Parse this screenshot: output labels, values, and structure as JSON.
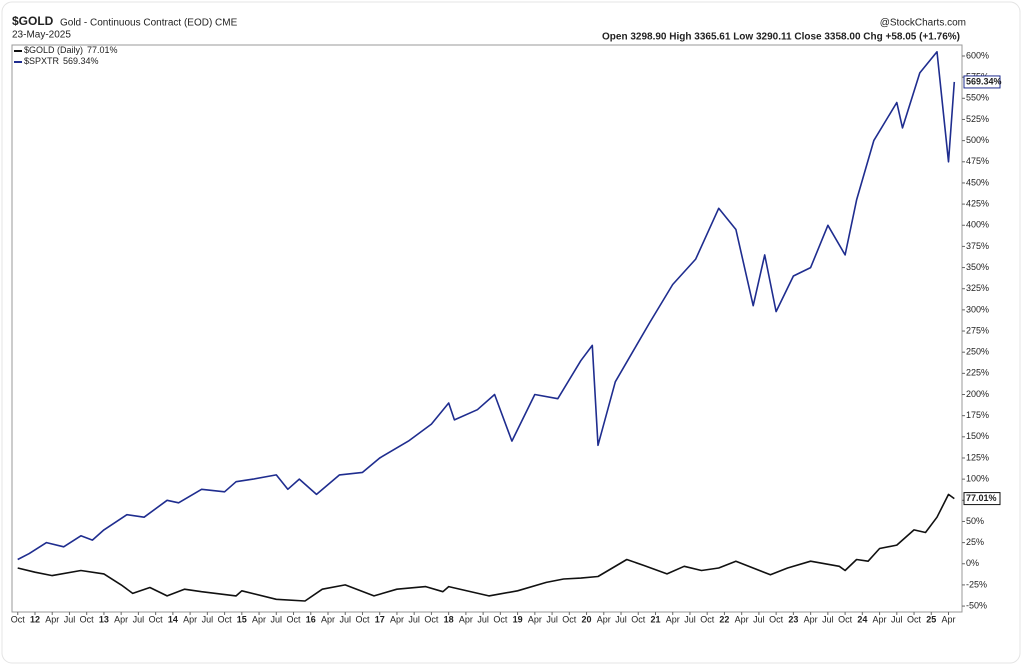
{
  "chart_data": {
    "type": "line",
    "title": "$GOLD",
    "subtitle": "Gold - Continuous Contract (EOD) CME",
    "date": "23-May-2025",
    "source": "@StockCharts.com",
    "ohlc": "Open 3298.90 High 3365.61 Low 3290.11 Close 3358.00 Chg +58.05 (+1.76%)",
    "xlim": [
      "2011-09",
      "2025-06"
    ],
    "ylim": [
      -57,
      613
    ],
    "xticks": [
      {
        "value": "2011-10",
        "label": "Oct"
      },
      {
        "value": "2012-01",
        "label": "12"
      },
      {
        "value": "2012-04",
        "label": "Apr"
      },
      {
        "value": "2012-07",
        "label": "Jul"
      },
      {
        "value": "2012-10",
        "label": "Oct"
      },
      {
        "value": "2013-01",
        "label": "13"
      },
      {
        "value": "2013-04",
        "label": "Apr"
      },
      {
        "value": "2013-07",
        "label": "Jul"
      },
      {
        "value": "2013-10",
        "label": "Oct"
      },
      {
        "value": "2014-01",
        "label": "14"
      },
      {
        "value": "2014-04",
        "label": "Apr"
      },
      {
        "value": "2014-07",
        "label": "Jul"
      },
      {
        "value": "2014-10",
        "label": "Oct"
      },
      {
        "value": "2015-01",
        "label": "15"
      },
      {
        "value": "2015-04",
        "label": "Apr"
      },
      {
        "value": "2015-07",
        "label": "Jul"
      },
      {
        "value": "2015-10",
        "label": "Oct"
      },
      {
        "value": "2016-01",
        "label": "16"
      },
      {
        "value": "2016-04",
        "label": "Apr"
      },
      {
        "value": "2016-07",
        "label": "Jul"
      },
      {
        "value": "2016-10",
        "label": "Oct"
      },
      {
        "value": "2017-01",
        "label": "17"
      },
      {
        "value": "2017-04",
        "label": "Apr"
      },
      {
        "value": "2017-07",
        "label": "Jul"
      },
      {
        "value": "2017-10",
        "label": "Oct"
      },
      {
        "value": "2018-01",
        "label": "18"
      },
      {
        "value": "2018-04",
        "label": "Apr"
      },
      {
        "value": "2018-07",
        "label": "Jul"
      },
      {
        "value": "2018-10",
        "label": "Oct"
      },
      {
        "value": "2019-01",
        "label": "19"
      },
      {
        "value": "2019-04",
        "label": "Apr"
      },
      {
        "value": "2019-07",
        "label": "Jul"
      },
      {
        "value": "2019-10",
        "label": "Oct"
      },
      {
        "value": "2020-01",
        "label": "20"
      },
      {
        "value": "2020-04",
        "label": "Apr"
      },
      {
        "value": "2020-07",
        "label": "Jul"
      },
      {
        "value": "2020-10",
        "label": "Oct"
      },
      {
        "value": "2021-01",
        "label": "21"
      },
      {
        "value": "2021-04",
        "label": "Apr"
      },
      {
        "value": "2021-07",
        "label": "Jul"
      },
      {
        "value": "2021-10",
        "label": "Oct"
      },
      {
        "value": "2022-01",
        "label": "22"
      },
      {
        "value": "2022-04",
        "label": "Apr"
      },
      {
        "value": "2022-07",
        "label": "Jul"
      },
      {
        "value": "2022-10",
        "label": "Oct"
      },
      {
        "value": "2023-01",
        "label": "23"
      },
      {
        "value": "2023-04",
        "label": "Apr"
      },
      {
        "value": "2023-07",
        "label": "Jul"
      },
      {
        "value": "2023-10",
        "label": "Oct"
      },
      {
        "value": "2024-01",
        "label": "24"
      },
      {
        "value": "2024-04",
        "label": "Apr"
      },
      {
        "value": "2024-07",
        "label": "Jul"
      },
      {
        "value": "2024-10",
        "label": "Oct"
      },
      {
        "value": "2025-01",
        "label": "25"
      },
      {
        "value": "2025-04",
        "label": "Apr"
      }
    ],
    "yticks": [
      {
        "value": -50,
        "label": "-50%"
      },
      {
        "value": -25,
        "label": "-25%"
      },
      {
        "value": 0,
        "label": "0%"
      },
      {
        "value": 25,
        "label": "25%"
      },
      {
        "value": 50,
        "label": "50%"
      },
      {
        "value": 75,
        "label": "75%"
      },
      {
        "value": 100,
        "label": "100%"
      },
      {
        "value": 125,
        "label": "125%"
      },
      {
        "value": 150,
        "label": "150%"
      },
      {
        "value": 175,
        "label": "175%"
      },
      {
        "value": 200,
        "label": "200%"
      },
      {
        "value": 225,
        "label": "225%"
      },
      {
        "value": 250,
        "label": "250%"
      },
      {
        "value": 275,
        "label": "275%"
      },
      {
        "value": 300,
        "label": "300%"
      },
      {
        "value": 325,
        "label": "325%"
      },
      {
        "value": 350,
        "label": "350%"
      },
      {
        "value": 375,
        "label": "375%"
      },
      {
        "value": 400,
        "label": "400%"
      },
      {
        "value": 425,
        "label": "425%"
      },
      {
        "value": 450,
        "label": "450%"
      },
      {
        "value": 475,
        "label": "475%"
      },
      {
        "value": 500,
        "label": "500%"
      },
      {
        "value": 525,
        "label": "525%"
      },
      {
        "value": 550,
        "label": "550%"
      },
      {
        "value": 575,
        "label": "575%"
      },
      {
        "value": 600,
        "label": "600%"
      }
    ],
    "series": [
      {
        "name": "$GOLD (Daily)",
        "last_label": "77.01%",
        "color": "#111111",
        "x": [
          "2011-10",
          "2012-01",
          "2012-04",
          "2012-09",
          "2013-01",
          "2013-04",
          "2013-06",
          "2013-09",
          "2013-12",
          "2014-03",
          "2014-06",
          "2014-12",
          "2015-01",
          "2015-07",
          "2015-12",
          "2016-03",
          "2016-07",
          "2016-12",
          "2017-04",
          "2017-09",
          "2017-12",
          "2018-01",
          "2018-08",
          "2019-01",
          "2019-06",
          "2019-09",
          "2019-12",
          "2020-03",
          "2020-08",
          "2020-11",
          "2021-03",
          "2021-06",
          "2021-09",
          "2021-12",
          "2022-03",
          "2022-09",
          "2022-12",
          "2023-04",
          "2023-09",
          "2023-10",
          "2023-12",
          "2024-02",
          "2024-04",
          "2024-07",
          "2024-10",
          "2024-12",
          "2025-02",
          "2025-04",
          "2025-05"
        ],
        "values": [
          -5,
          -10,
          -14,
          -8,
          -12,
          -25,
          -35,
          -28,
          -38,
          -30,
          -33,
          -38,
          -32,
          -42,
          -44,
          -30,
          -25,
          -38,
          -30,
          -27,
          -33,
          -27,
          -38,
          -32,
          -22,
          -18,
          -17,
          -15,
          5,
          -2,
          -12,
          -3,
          -8,
          -5,
          3,
          -13,
          -5,
          3,
          -3,
          -8,
          5,
          3,
          18,
          22,
          40,
          37,
          55,
          82,
          77.01
        ]
      },
      {
        "name": "$SPXTR",
        "last_label": "569.34%",
        "color": "#1f2d8f",
        "x": [
          "2011-10",
          "2011-12",
          "2012-03",
          "2012-06",
          "2012-09",
          "2012-11",
          "2013-01",
          "2013-05",
          "2013-08",
          "2013-12",
          "2014-02",
          "2014-06",
          "2014-10",
          "2014-12",
          "2015-03",
          "2015-07",
          "2015-09",
          "2015-11",
          "2016-02",
          "2016-06",
          "2016-10",
          "2017-01",
          "2017-06",
          "2017-10",
          "2018-01",
          "2018-02",
          "2018-06",
          "2018-09",
          "2018-12",
          "2019-04",
          "2019-08",
          "2019-12",
          "2020-02",
          "2020-03",
          "2020-06",
          "2020-09",
          "2020-12",
          "2021-04",
          "2021-08",
          "2021-12",
          "2022-03",
          "2022-06",
          "2022-08",
          "2022-10",
          "2023-01",
          "2023-04",
          "2023-07",
          "2023-10",
          "2023-12",
          "2024-03",
          "2024-07",
          "2024-08",
          "2024-11",
          "2025-02",
          "2025-04",
          "2025-05"
        ],
        "values": [
          5,
          12,
          25,
          20,
          33,
          28,
          40,
          58,
          55,
          75,
          72,
          88,
          85,
          97,
          100,
          105,
          88,
          100,
          82,
          105,
          108,
          125,
          145,
          165,
          190,
          170,
          182,
          200,
          145,
          200,
          195,
          240,
          258,
          140,
          215,
          250,
          285,
          330,
          360,
          420,
          395,
          305,
          365,
          298,
          340,
          350,
          400,
          365,
          430,
          500,
          545,
          515,
          580,
          605,
          475,
          569.34
        ]
      }
    ]
  }
}
